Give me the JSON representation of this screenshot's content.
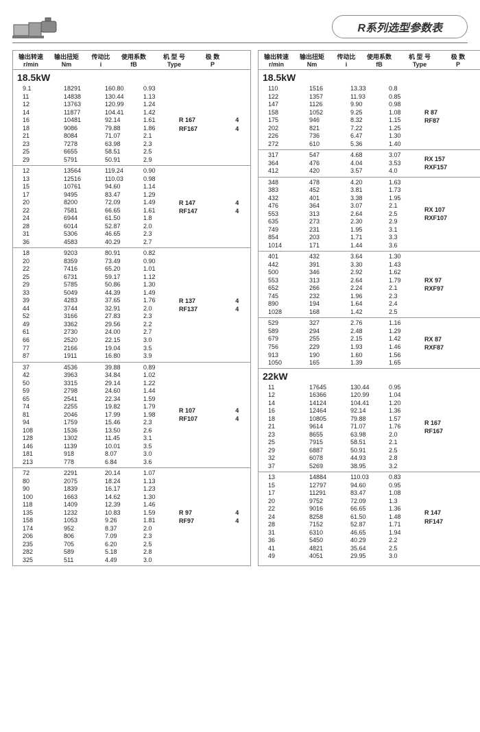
{
  "title": "R系列选型参数表",
  "headers": {
    "h1a": "输出转速",
    "h1b": "r/min",
    "h2a": "输出扭矩",
    "h2b": "Nm",
    "h3a": "传动比",
    "h3b": "i",
    "h4a": "使用系数",
    "h4b": "fB",
    "h5a": "机 型 号",
    "h5b": "Type",
    "h6a": "极 数",
    "h6b": "P"
  },
  "left": {
    "kw": "18.5kW",
    "groups": [
      {
        "models": [
          "R  167",
          "RF167"
        ],
        "p": [
          "4",
          "4"
        ],
        "rows": [
          [
            "9.1",
            "18291",
            "160.80",
            "0.93"
          ],
          [
            "11",
            "14838",
            "130.44",
            "1.13"
          ],
          [
            "12",
            "13763",
            "120.99",
            "1.24"
          ],
          [
            "14",
            "11877",
            "104.41",
            "1.42"
          ],
          [
            "16",
            "10481",
            "92.14",
            "1.61"
          ],
          [
            "18",
            "9086",
            "79.88",
            "1.86"
          ],
          [
            "21",
            "8084",
            "71.07",
            "2.1"
          ],
          [
            "23",
            "7278",
            "63.98",
            "2.3"
          ],
          [
            "25",
            "6655",
            "58.51",
            "2.5"
          ],
          [
            "29",
            "5791",
            "50.91",
            "2.9"
          ]
        ]
      },
      {
        "models": [
          "R  147",
          "RF147"
        ],
        "p": [
          "4",
          "4"
        ],
        "rows": [
          [
            "12",
            "13564",
            "119.24",
            "0.90"
          ],
          [
            "13",
            "12516",
            "110.03",
            "0.98"
          ],
          [
            "15",
            "10761",
            "94.60",
            "1.14"
          ],
          [
            "17",
            "9495",
            "83.47",
            "1.29"
          ],
          [
            "20",
            "8200",
            "72.09",
            "1.49"
          ],
          [
            "22",
            "7581",
            "66.65",
            "1.61"
          ],
          [
            "24",
            "6944",
            "61.50",
            "1.8"
          ],
          [
            "28",
            "6014",
            "52.87",
            "2.0"
          ],
          [
            "31",
            "5306",
            "46.65",
            "2.3"
          ],
          [
            "36",
            "4583",
            "40.29",
            "2.7"
          ]
        ]
      },
      {
        "models": [
          "R  137",
          "RF137"
        ],
        "p": [
          "4",
          "4"
        ],
        "rows": [
          [
            "18",
            "9203",
            "80.91",
            "0.82"
          ],
          [
            "20",
            "8359",
            "73.49",
            "0.90"
          ],
          [
            "22",
            "7416",
            "65.20",
            "1.01"
          ],
          [
            "25",
            "6731",
            "59.17",
            "1.12"
          ],
          [
            "29",
            "5785",
            "50.86",
            "1.30"
          ],
          [
            "33",
            "5049",
            "44.39",
            "1.49"
          ],
          [
            "39",
            "4283",
            "37.65",
            "1.76"
          ],
          [
            "44",
            "3744",
            "32.91",
            "2.0"
          ],
          [
            "52",
            "3166",
            "27.83",
            "2.3"
          ],
          [
            "49",
            "3362",
            "29.56",
            "2.2"
          ],
          [
            "61",
            "2730",
            "24.00",
            "2.7"
          ],
          [
            "66",
            "2520",
            "22.15",
            "3.0"
          ],
          [
            "77",
            "2166",
            "19.04",
            "3.5"
          ],
          [
            "87",
            "1911",
            "16.80",
            "3.9"
          ]
        ]
      },
      {
        "models": [
          "R  107",
          "RF107"
        ],
        "p": [
          "4",
          "4"
        ],
        "rows": [
          [
            "37",
            "4536",
            "39.88",
            "0.89"
          ],
          [
            "42",
            "3963",
            "34.84",
            "1.02"
          ],
          [
            "50",
            "3315",
            "29.14",
            "1.22"
          ],
          [
            "59",
            "2798",
            "24.60",
            "1.44"
          ],
          [
            "65",
            "2541",
            "22.34",
            "1.59"
          ],
          [
            "74",
            "2255",
            "19.82",
            "1.79"
          ],
          [
            "81",
            "2046",
            "17.99",
            "1.98"
          ],
          [
            "94",
            "1759",
            "15.46",
            "2.3"
          ],
          [
            "108",
            "1536",
            "13.50",
            "2.6"
          ],
          [
            "128",
            "1302",
            "11.45",
            "3.1"
          ],
          [
            "146",
            "1139",
            "10.01",
            "3.5"
          ],
          [
            "181",
            "918",
            "8.07",
            "3.0"
          ],
          [
            "213",
            "778",
            "6.84",
            "3.6"
          ]
        ]
      },
      {
        "models": [
          "R  97",
          "RF97"
        ],
        "p": [
          "4",
          "4"
        ],
        "rows": [
          [
            "72",
            "2291",
            "20.14",
            "1.07"
          ],
          [
            "80",
            "2075",
            "18.24",
            "1.13"
          ],
          [
            "90",
            "1839",
            "16.17",
            "1.23"
          ],
          [
            "100",
            "1663",
            "14.62",
            "1.30"
          ],
          [
            "118",
            "1409",
            "12.39",
            "1.46"
          ],
          [
            "135",
            "1232",
            "10.83",
            "1.59"
          ],
          [
            "158",
            "1053",
            "9.26",
            "1.81"
          ],
          [
            "174",
            "952",
            "8.37",
            "2.0"
          ],
          [
            "206",
            "806",
            "7.09",
            "2.3"
          ],
          [
            "235",
            "705",
            "6.20",
            "2.5"
          ],
          [
            "282",
            "589",
            "5.18",
            "2.8"
          ],
          [
            "325",
            "511",
            "4.49",
            "3.0"
          ]
        ]
      }
    ]
  },
  "right": {
    "kw1": "18.5kW",
    "kw2": "22kW",
    "groups1": [
      {
        "models": [
          "R  87",
          "RF87"
        ],
        "p": [
          "4",
          "4"
        ],
        "rows": [
          [
            "110",
            "1516",
            "13.33",
            "0.8"
          ],
          [
            "122",
            "1357",
            "11.93",
            "0.85"
          ],
          [
            "147",
            "1126",
            "9.90",
            "0.98"
          ],
          [
            "158",
            "1052",
            "9.25",
            "1.08"
          ],
          [
            "175",
            "946",
            "8.32",
            "1.15"
          ],
          [
            "202",
            "821",
            "7.22",
            "1.25"
          ],
          [
            "226",
            "736",
            "6.47",
            "1.30"
          ],
          [
            "272",
            "610",
            "5.36",
            "1.40"
          ]
        ]
      },
      {
        "models": [
          "RX  157",
          "RXF157"
        ],
        "p": [
          "4",
          "4"
        ],
        "rows": [
          [
            "317",
            "547",
            "4.68",
            "3.07"
          ],
          [
            "364",
            "476",
            "4.04",
            "3.53"
          ],
          [
            "412",
            "420",
            "3.57",
            "4.0"
          ]
        ]
      },
      {
        "models": [
          "RX  107",
          "RXF107"
        ],
        "p": [
          "4",
          "4"
        ],
        "rows": [
          [
            "348",
            "478",
            "4.20",
            "1.63"
          ],
          [
            "383",
            "452",
            "3.81",
            "1.73"
          ],
          [
            "432",
            "401",
            "3.38",
            "1.95"
          ],
          [
            "476",
            "364",
            "3.07",
            "2.1"
          ],
          [
            "553",
            "313",
            "2.64",
            "2.5"
          ],
          [
            "635",
            "273",
            "2.30",
            "2.9"
          ],
          [
            "749",
            "231",
            "1.95",
            "3.1"
          ],
          [
            "854",
            "203",
            "1.71",
            "3.3"
          ],
          [
            "1014",
            "171",
            "1.44",
            "3.6"
          ]
        ]
      },
      {
        "models": [
          "RX  97",
          "RXF97"
        ],
        "p": [
          "4",
          "4"
        ],
        "rows": [
          [
            "401",
            "432",
            "3.64",
            "1.30"
          ],
          [
            "442",
            "391",
            "3.30",
            "1.43"
          ],
          [
            "500",
            "346",
            "2.92",
            "1.62"
          ],
          [
            "553",
            "313",
            "2.64",
            "1.79"
          ],
          [
            "652",
            "266",
            "2.24",
            "2.1"
          ],
          [
            "745",
            "232",
            "1.96",
            "2.3"
          ],
          [
            "890",
            "194",
            "1.64",
            "2.4"
          ],
          [
            "1028",
            "168",
            "1.42",
            "2.5"
          ]
        ]
      },
      {
        "models": [
          "RX  87",
          "RXF87"
        ],
        "p": [
          "4",
          "4"
        ],
        "rows": [
          [
            "529",
            "327",
            "2.76",
            "1.16"
          ],
          [
            "589",
            "294",
            "2.48",
            "1.29"
          ],
          [
            "679",
            "255",
            "2.15",
            "1.42"
          ],
          [
            "756",
            "229",
            "1.93",
            "1.46"
          ],
          [
            "913",
            "190",
            "1.60",
            "1.56"
          ],
          [
            "1050",
            "165",
            "1.39",
            "1.65"
          ]
        ]
      }
    ],
    "groups2": [
      {
        "models": [
          "R  167",
          "RF167"
        ],
        "p": [
          "4",
          "4"
        ],
        "rows": [
          [
            "11",
            "17645",
            "130.44",
            "0.95"
          ],
          [
            "12",
            "16366",
            "120.99",
            "1.04"
          ],
          [
            "14",
            "14124",
            "104.41",
            "1.20"
          ],
          [
            "16",
            "12464",
            "92.14",
            "1.36"
          ],
          [
            "18",
            "10805",
            "79.88",
            "1.57"
          ],
          [
            "21",
            "9614",
            "71.07",
            "1.76"
          ],
          [
            "23",
            "8655",
            "63.98",
            "2.0"
          ],
          [
            "25",
            "7915",
            "58.51",
            "2.1"
          ],
          [
            "29",
            "6887",
            "50.91",
            "2.5"
          ],
          [
            "32",
            "6078",
            "44.93",
            "2.8"
          ],
          [
            "37",
            "5269",
            "38.95",
            "3.2"
          ]
        ]
      },
      {
        "models": [
          "R  147",
          "RF147"
        ],
        "p": [
          "4",
          "4"
        ],
        "rows": [
          [
            "13",
            "14884",
            "110.03",
            "0.83"
          ],
          [
            "15",
            "12797",
            "94.60",
            "0.95"
          ],
          [
            "17",
            "11291",
            "83.47",
            "1.08"
          ],
          [
            "20",
            "9752",
            "72.09",
            "1.3"
          ],
          [
            "22",
            "9016",
            "66.65",
            "1.36"
          ],
          [
            "24",
            "8258",
            "61.50",
            "1.48"
          ],
          [
            "28",
            "7152",
            "52.87",
            "1.71"
          ],
          [
            "31",
            "6310",
            "46.65",
            "1.94"
          ],
          [
            "36",
            "5450",
            "40.29",
            "2.2"
          ],
          [
            "41",
            "4821",
            "35.64",
            "2.5"
          ],
          [
            "49",
            "4051",
            "29.95",
            "3.0"
          ]
        ]
      }
    ]
  }
}
